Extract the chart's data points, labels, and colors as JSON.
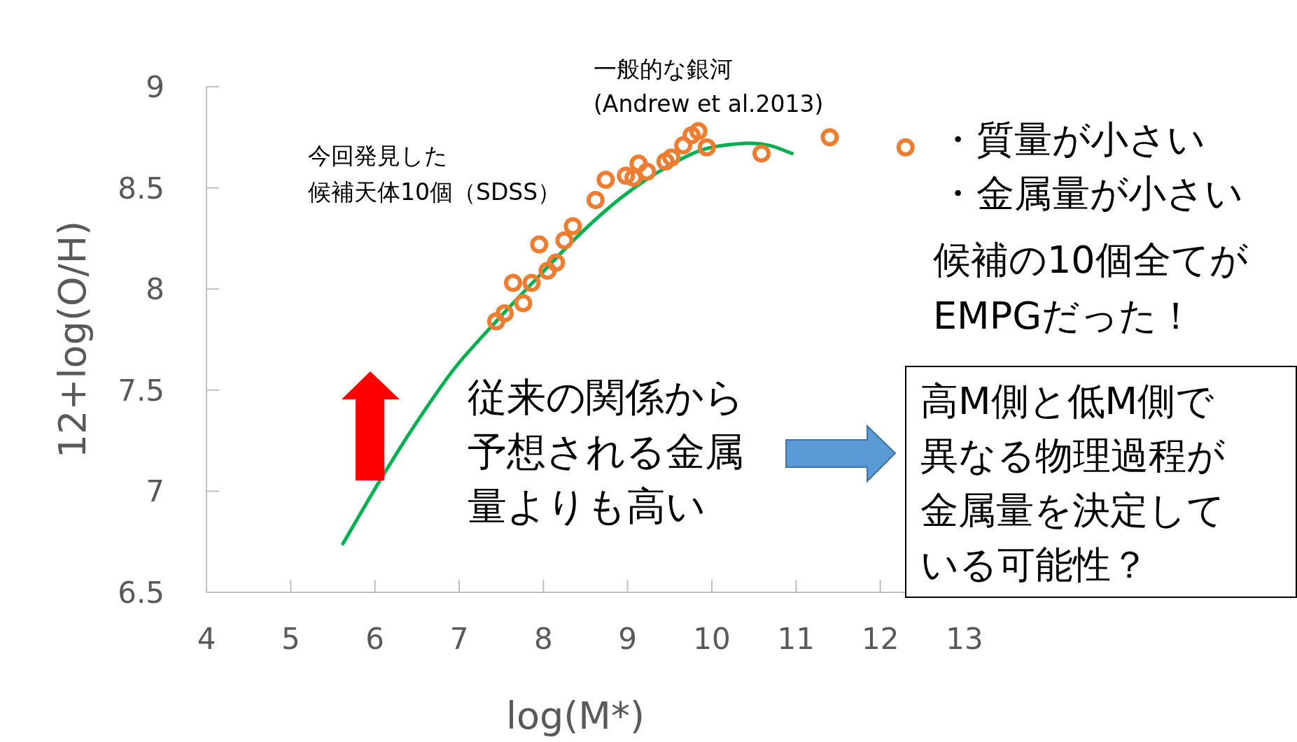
{
  "chart_data": {
    "type": "scatter",
    "xlabel": "log(M*)",
    "ylabel": "12+log(O/H)",
    "xlim": [
      4,
      13
    ],
    "xticks": [
      4,
      5,
      6,
      7,
      8,
      9,
      10,
      11,
      12,
      13
    ],
    "ylim": [
      6.5,
      9
    ],
    "yticks": [
      6.5,
      7,
      7.5,
      8,
      8.5,
      9
    ],
    "grid": false,
    "marker": "circle",
    "series": [
      {
        "color": "#ed7d31",
        "x": [
          7.44,
          7.54,
          7.64,
          7.76,
          7.86,
          7.95,
          8.05,
          8.15,
          8.25,
          8.35,
          8.62,
          8.74,
          8.98,
          9.07,
          9.13,
          9.23,
          9.45,
          9.52,
          9.66,
          9.76,
          9.84,
          9.94,
          10.59,
          11.4,
          12.3
        ],
        "values": [
          7.84,
          7.88,
          8.03,
          7.93,
          8.03,
          8.22,
          8.09,
          8.13,
          8.24,
          8.31,
          8.44,
          8.54,
          8.56,
          8.55,
          8.62,
          8.58,
          8.63,
          8.65,
          8.71,
          8.76,
          8.78,
          8.7,
          8.67,
          8.75,
          8.7
        ]
      },
      {
        "type": "line",
        "color": "#00b050",
        "marker": "none",
        "line_style": "solid",
        "x": [
          5.62,
          6.07,
          6.51,
          6.95,
          7.44,
          7.94,
          8.43,
          8.92,
          9.41,
          9.9,
          10.39,
          10.68,
          10.95
        ],
        "values": [
          6.74,
          7.06,
          7.35,
          7.61,
          7.84,
          8.06,
          8.27,
          8.45,
          8.59,
          8.69,
          8.72,
          8.71,
          8.67
        ]
      }
    ],
    "annotations": [
      "一般的な銀河",
      "(Andrew et al.2013)",
      "今回発見した",
      "候補天体10個（SDSS）",
      "・質量が小さい",
      "・金属量が小さい",
      "候補の10個全てが",
      "EMPGだった！",
      "従来の関係から",
      "予想される金属",
      "量よりも高い",
      "高M側と低M側で",
      "異なる物理過程が",
      "金属量を決定して",
      "いる可能性？"
    ]
  }
}
